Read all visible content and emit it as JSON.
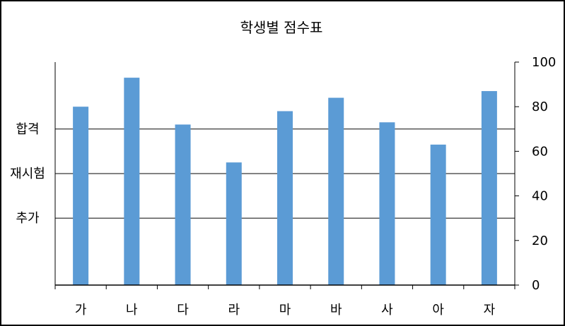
{
  "chart_data": {
    "type": "bar",
    "title": "학생별 점수표",
    "categories": [
      "가",
      "나",
      "다",
      "라",
      "마",
      "바",
      "사",
      "아",
      "자"
    ],
    "series": [
      {
        "values": [
          80,
          93,
          72,
          55,
          78,
          84,
          73,
          63,
          87
        ]
      }
    ],
    "y_axis": {
      "position": "right",
      "min": 0,
      "max": 100,
      "ticks": [
        0,
        20,
        40,
        60,
        80,
        100
      ]
    },
    "reference_lines": [
      {
        "label": "합격",
        "value": 70
      },
      {
        "label": "재시험",
        "value": 50
      },
      {
        "label": "추가",
        "value": 30
      }
    ],
    "grid": false,
    "legend": "none",
    "colors": {
      "bar": "#5B9BD5",
      "reference_line": "#595959",
      "axis": "#000000",
      "border": "#000000"
    }
  }
}
